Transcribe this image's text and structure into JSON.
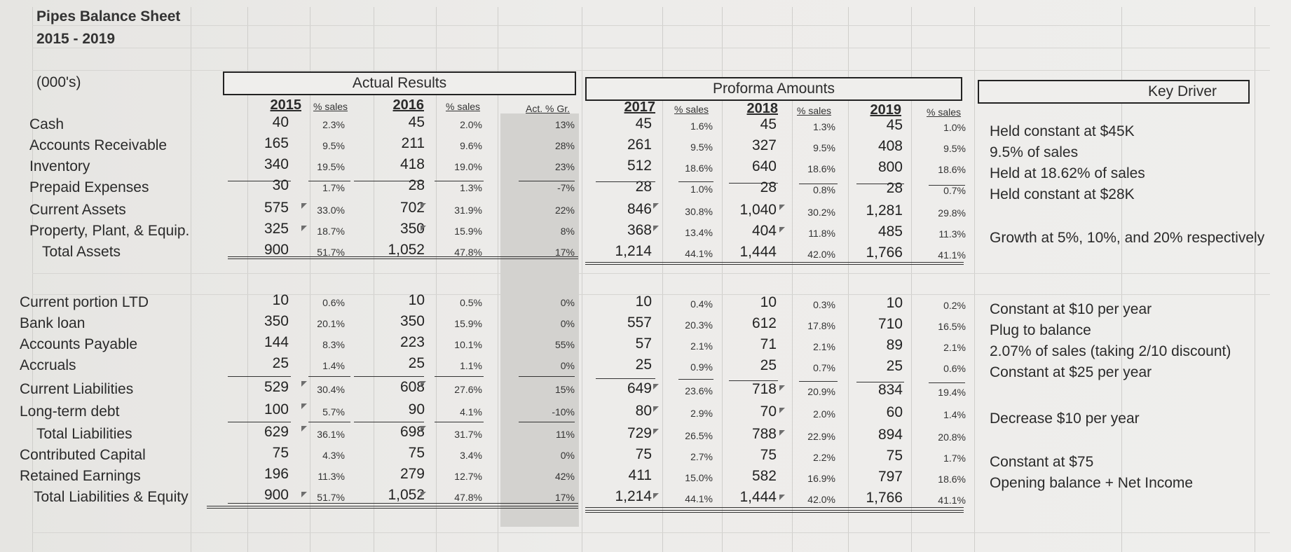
{
  "title": {
    "line1": "Pipes Balance Sheet",
    "line2": "2015 - 2019",
    "units": "(000's)"
  },
  "headers": {
    "actual": "Actual Results",
    "proforma": "Proforma Amounts",
    "key_driver": "Key Driver",
    "y2015": "2015",
    "y2016": "2016",
    "y2017": "2017",
    "y2018": "2018",
    "y2019": "2019",
    "pct_sales": "% sales",
    "act_gr": "Act. % Gr."
  },
  "assets": [
    {
      "label": "Cash",
      "v2015": "40",
      "p2015": "2.3%",
      "v2016": "45",
      "p2016": "2.0%",
      "gr": "13%",
      "v2017": "45",
      "p2017": "1.6%",
      "v2018": "45",
      "p2018": "1.3%",
      "v2019": "45",
      "p2019": "1.0%",
      "key": "Held constant at $45K"
    },
    {
      "label": "Accounts Receivable",
      "v2015": "165",
      "p2015": "9.5%",
      "v2016": "211",
      "p2016": "9.6%",
      "gr": "28%",
      "v2017": "261",
      "p2017": "9.5%",
      "v2018": "327",
      "p2018": "9.5%",
      "v2019": "408",
      "p2019": "9.5%",
      "key": "9.5% of sales"
    },
    {
      "label": "Inventory",
      "v2015": "340",
      "p2015": "19.5%",
      "v2016": "418",
      "p2016": "19.0%",
      "gr": "23%",
      "v2017": "512",
      "p2017": "18.6%",
      "v2018": "640",
      "p2018": "18.6%",
      "v2019": "800",
      "p2019": "18.6%",
      "key": "Held at 18.62% of sales"
    },
    {
      "label": "Prepaid Expenses",
      "v2015": "30",
      "p2015": "1.7%",
      "v2016": "28",
      "p2016": "1.3%",
      "gr": "-7%",
      "v2017": "28",
      "p2017": "1.0%",
      "v2018": "28",
      "p2018": "0.8%",
      "v2019": "28",
      "p2019": "0.7%",
      "key": "Held constant at $28K"
    },
    {
      "label": "Current Assets",
      "v2015": "575",
      "p2015": "33.0%",
      "v2016": "702",
      "p2016": "31.9%",
      "gr": "22%",
      "v2017": "846",
      "p2017": "30.8%",
      "v2018": "1,040",
      "p2018": "30.2%",
      "v2019": "1,281",
      "p2019": "29.8%",
      "key": ""
    },
    {
      "label": "Property, Plant, & Equip.",
      "v2015": "325",
      "p2015": "18.7%",
      "v2016": "350",
      "p2016": "15.9%",
      "gr": "8%",
      "v2017": "368",
      "p2017": "13.4%",
      "v2018": "404",
      "p2018": "11.8%",
      "v2019": "485",
      "p2019": "11.3%",
      "key": "Growth at 5%, 10%, and 20% respectively"
    },
    {
      "label": "Total Assets",
      "v2015": "900",
      "p2015": "51.7%",
      "v2016": "1,052",
      "p2016": "47.8%",
      "gr": "17%",
      "v2017": "1,214",
      "p2017": "44.1%",
      "v2018": "1,444",
      "p2018": "42.0%",
      "v2019": "1,766",
      "p2019": "41.1%",
      "key": ""
    }
  ],
  "liabilities": [
    {
      "label": "Current portion LTD",
      "v2015": "10",
      "p2015": "0.6%",
      "v2016": "10",
      "p2016": "0.5%",
      "gr": "0%",
      "v2017": "10",
      "p2017": "0.4%",
      "v2018": "10",
      "p2018": "0.3%",
      "v2019": "10",
      "p2019": "0.2%",
      "key": "Constant at $10 per year"
    },
    {
      "label": "Bank loan",
      "v2015": "350",
      "p2015": "20.1%",
      "v2016": "350",
      "p2016": "15.9%",
      "gr": "0%",
      "v2017": "557",
      "p2017": "20.3%",
      "v2018": "612",
      "p2018": "17.8%",
      "v2019": "710",
      "p2019": "16.5%",
      "key": "Plug to balance"
    },
    {
      "label": "Accounts Payable",
      "v2015": "144",
      "p2015": "8.3%",
      "v2016": "223",
      "p2016": "10.1%",
      "gr": "55%",
      "v2017": "57",
      "p2017": "2.1%",
      "v2018": "71",
      "p2018": "2.1%",
      "v2019": "89",
      "p2019": "2.1%",
      "key": "2.07% of sales (taking 2/10 discount)"
    },
    {
      "label": "Accruals",
      "v2015": "25",
      "p2015": "1.4%",
      "v2016": "25",
      "p2016": "1.1%",
      "gr": "0%",
      "v2017": "25",
      "p2017": "0.9%",
      "v2018": "25",
      "p2018": "0.7%",
      "v2019": "25",
      "p2019": "0.6%",
      "key": "Constant at $25 per year"
    },
    {
      "label": "Current Liabilities",
      "v2015": "529",
      "p2015": "30.4%",
      "v2016": "608",
      "p2016": "27.6%",
      "gr": "15%",
      "v2017": "649",
      "p2017": "23.6%",
      "v2018": "718",
      "p2018": "20.9%",
      "v2019": "834",
      "p2019": "19.4%",
      "key": ""
    },
    {
      "label": "Long-term debt",
      "v2015": "100",
      "p2015": "5.7%",
      "v2016": "90",
      "p2016": "4.1%",
      "gr": "-10%",
      "v2017": "80",
      "p2017": "2.9%",
      "v2018": "70",
      "p2018": "2.0%",
      "v2019": "60",
      "p2019": "1.4%",
      "key": "Decrease $10 per year"
    },
    {
      "label": "Total Liabilities",
      "v2015": "629",
      "p2015": "36.1%",
      "v2016": "698",
      "p2016": "31.7%",
      "gr": "11%",
      "v2017": "729",
      "p2017": "26.5%",
      "v2018": "788",
      "p2018": "22.9%",
      "v2019": "894",
      "p2019": "20.8%",
      "key": ""
    },
    {
      "label": "Contributed Capital",
      "v2015": "75",
      "p2015": "4.3%",
      "v2016": "75",
      "p2016": "3.4%",
      "gr": "0%",
      "v2017": "75",
      "p2017": "2.7%",
      "v2018": "75",
      "p2018": "2.2%",
      "v2019": "75",
      "p2019": "1.7%",
      "key": "Constant at $75"
    },
    {
      "label": "Retained Earnings",
      "v2015": "196",
      "p2015": "11.3%",
      "v2016": "279",
      "p2016": "12.7%",
      "gr": "42%",
      "v2017": "411",
      "p2017": "15.0%",
      "v2018": "582",
      "p2018": "16.9%",
      "v2019": "797",
      "p2019": "18.6%",
      "key": "Opening balance + Net Income"
    },
    {
      "label": "Total Liabilities & Equity",
      "v2015": "900",
      "p2015": "51.7%",
      "v2016": "1,052",
      "p2016": "47.8%",
      "gr": "17%",
      "v2017": "1,214",
      "p2017": "44.1%",
      "v2018": "1,444",
      "p2018": "42.0%",
      "v2019": "1,766",
      "p2019": "41.1%",
      "key": ""
    }
  ]
}
